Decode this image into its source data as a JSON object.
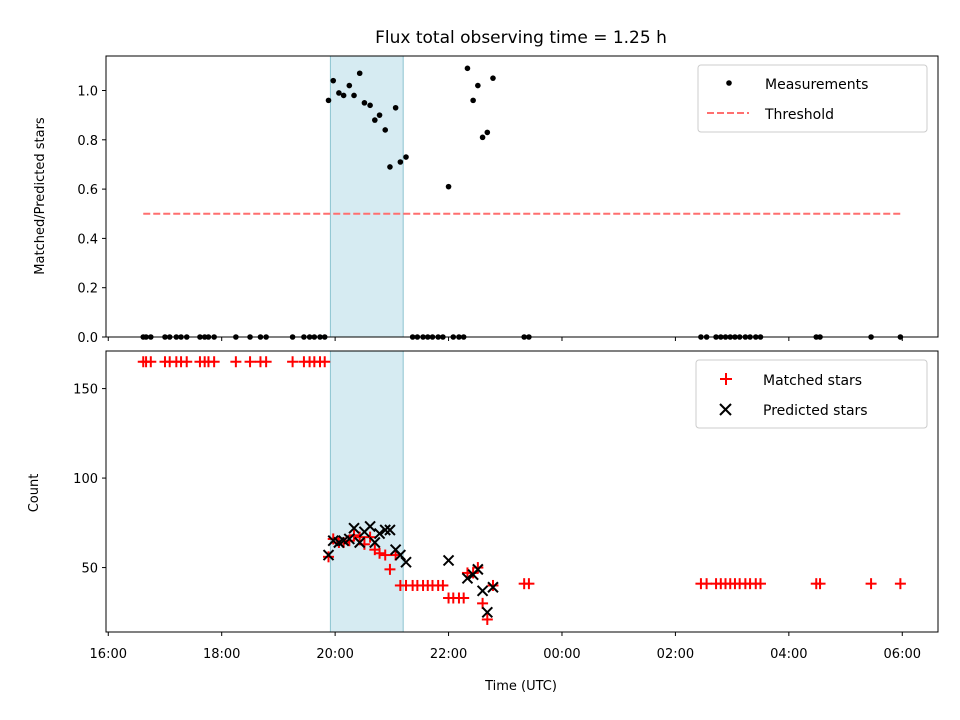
{
  "chart_data": [
    {
      "type": "scatter",
      "title": "Flux total observing time = 1.25 h",
      "ylabel": "Matched/Predicted stars",
      "xlabel": "",
      "xlim": [
        "16:00",
        "06:00"
      ],
      "ylim": [
        0,
        1.14
      ],
      "yticks": [
        "0.0",
        "0.2",
        "0.4",
        "0.6",
        "0.8",
        "1.0"
      ],
      "shaded_interval": [
        "19:55",
        "21:12"
      ],
      "legend_position": "upper right",
      "series": [
        {
          "name": "Measurements",
          "marker": "dot",
          "color": "#000000",
          "points": [
            [
              "16:37",
              0
            ],
            [
              "16:40",
              0
            ],
            [
              "16:45",
              0
            ],
            [
              "17:00",
              0
            ],
            [
              "17:05",
              0
            ],
            [
              "17:12",
              0
            ],
            [
              "17:17",
              0
            ],
            [
              "17:23",
              0
            ],
            [
              "17:37",
              0
            ],
            [
              "17:42",
              0
            ],
            [
              "17:46",
              0
            ],
            [
              "17:52",
              0
            ],
            [
              "18:15",
              0
            ],
            [
              "18:30",
              0
            ],
            [
              "18:41",
              0
            ],
            [
              "18:47",
              0
            ],
            [
              "19:15",
              0
            ],
            [
              "19:27",
              0
            ],
            [
              "19:33",
              0
            ],
            [
              "19:38",
              0
            ],
            [
              "19:44",
              0
            ],
            [
              "19:49",
              0
            ],
            [
              "19:53",
              0.96
            ],
            [
              "19:58",
              1.04
            ],
            [
              "20:04",
              0.99
            ],
            [
              "20:09",
              0.98
            ],
            [
              "20:15",
              1.02
            ],
            [
              "20:20",
              0.98
            ],
            [
              "20:26",
              1.07
            ],
            [
              "20:31",
              0.95
            ],
            [
              "20:37",
              0.94
            ],
            [
              "20:42",
              0.88
            ],
            [
              "20:47",
              0.9
            ],
            [
              "20:53",
              0.84
            ],
            [
              "20:58",
              0.69
            ],
            [
              "21:04",
              0.93
            ],
            [
              "21:09",
              0.71
            ],
            [
              "21:15",
              0.73
            ],
            [
              "21:22",
              0
            ],
            [
              "21:27",
              0
            ],
            [
              "21:33",
              0
            ],
            [
              "21:38",
              0
            ],
            [
              "21:43",
              0
            ],
            [
              "21:49",
              0
            ],
            [
              "21:54",
              0
            ],
            [
              "22:00",
              0.61
            ],
            [
              "22:05",
              0
            ],
            [
              "22:11",
              0
            ],
            [
              "22:16",
              0
            ],
            [
              "22:20",
              1.09
            ],
            [
              "22:26",
              0.96
            ],
            [
              "22:31",
              1.02
            ],
            [
              "22:36",
              0.81
            ],
            [
              "22:41",
              0.83
            ],
            [
              "22:47",
              1.05
            ],
            [
              "23:20",
              0
            ],
            [
              "23:25",
              0
            ],
            [
              "02:27",
              0
            ],
            [
              "02:33",
              0
            ],
            [
              "02:43",
              0
            ],
            [
              "02:48",
              0
            ],
            [
              "02:53",
              0
            ],
            [
              "02:58",
              0
            ],
            [
              "03:03",
              0
            ],
            [
              "03:08",
              0
            ],
            [
              "03:14",
              0
            ],
            [
              "03:19",
              0
            ],
            [
              "03:25",
              0
            ],
            [
              "03:30",
              0
            ],
            [
              "04:29",
              0
            ],
            [
              "04:33",
              0
            ],
            [
              "05:27",
              0
            ],
            [
              "05:58",
              0
            ]
          ]
        },
        {
          "name": "Threshold",
          "style": "dashed-line",
          "color": "#ff6f6f",
          "points": [
            [
              "16:37",
              0.5
            ],
            [
              "05:58",
              0.5
            ]
          ]
        }
      ]
    },
    {
      "type": "scatter",
      "title": "",
      "ylabel": "Count",
      "xlabel": "Time (UTC)",
      "xlim": [
        "16:00",
        "06:00"
      ],
      "ylim": [
        14,
        171
      ],
      "yticks": [
        "50",
        "100",
        "150"
      ],
      "xticks": [
        "16:00",
        "18:00",
        "20:00",
        "22:00",
        "00:00",
        "02:00",
        "04:00",
        "06:00"
      ],
      "shaded_interval": [
        "19:55",
        "21:12"
      ],
      "legend_position": "upper right",
      "series": [
        {
          "name": "Matched stars",
          "marker": "plus",
          "color": "#ff0000",
          "points": [
            [
              "16:37",
              165
            ],
            [
              "16:40",
              165
            ],
            [
              "16:45",
              165
            ],
            [
              "17:00",
              165
            ],
            [
              "17:05",
              165
            ],
            [
              "17:12",
              165
            ],
            [
              "17:17",
              165
            ],
            [
              "17:23",
              165
            ],
            [
              "17:37",
              165
            ],
            [
              "17:42",
              165
            ],
            [
              "17:46",
              165
            ],
            [
              "17:52",
              165
            ],
            [
              "18:15",
              165
            ],
            [
              "18:30",
              165
            ],
            [
              "18:41",
              165
            ],
            [
              "18:47",
              165
            ],
            [
              "19:15",
              165
            ],
            [
              "19:27",
              165
            ],
            [
              "19:33",
              165
            ],
            [
              "19:38",
              165
            ],
            [
              "19:44",
              165
            ],
            [
              "19:49",
              165
            ],
            [
              "19:53",
              56
            ],
            [
              "19:58",
              66
            ],
            [
              "20:04",
              64
            ],
            [
              "20:09",
              64
            ],
            [
              "20:15",
              65
            ],
            [
              "20:20",
              68
            ],
            [
              "20:26",
              67
            ],
            [
              "20:31",
              63
            ],
            [
              "20:37",
              67
            ],
            [
              "20:42",
              60
            ],
            [
              "20:47",
              58
            ],
            [
              "20:53",
              57
            ],
            [
              "20:58",
              49
            ],
            [
              "21:04",
              57
            ],
            [
              "21:09",
              40
            ],
            [
              "21:15",
              40
            ],
            [
              "21:22",
              40
            ],
            [
              "21:27",
              40
            ],
            [
              "21:33",
              40
            ],
            [
              "21:38",
              40
            ],
            [
              "21:43",
              40
            ],
            [
              "21:49",
              40
            ],
            [
              "21:54",
              40
            ],
            [
              "22:00",
              33
            ],
            [
              "22:05",
              33
            ],
            [
              "22:11",
              33
            ],
            [
              "22:16",
              33
            ],
            [
              "22:20",
              47
            ],
            [
              "22:26",
              47
            ],
            [
              "22:31",
              50
            ],
            [
              "22:36",
              30
            ],
            [
              "22:41",
              21
            ],
            [
              "22:47",
              40
            ],
            [
              "23:20",
              41
            ],
            [
              "23:25",
              41
            ],
            [
              "02:27",
              41
            ],
            [
              "02:33",
              41
            ],
            [
              "02:43",
              41
            ],
            [
              "02:48",
              41
            ],
            [
              "02:53",
              41
            ],
            [
              "02:58",
              41
            ],
            [
              "03:03",
              41
            ],
            [
              "03:08",
              41
            ],
            [
              "03:14",
              41
            ],
            [
              "03:19",
              41
            ],
            [
              "03:25",
              41
            ],
            [
              "03:30",
              41
            ],
            [
              "04:29",
              41
            ],
            [
              "04:33",
              41
            ],
            [
              "05:27",
              41
            ],
            [
              "05:58",
              41
            ]
          ]
        },
        {
          "name": "Predicted stars",
          "marker": "x",
          "color": "#000000",
          "points": [
            [
              "19:53",
              57
            ],
            [
              "19:58",
              65
            ],
            [
              "20:04",
              64
            ],
            [
              "20:09",
              65
            ],
            [
              "20:15",
              66
            ],
            [
              "20:20",
              72
            ],
            [
              "20:26",
              64
            ],
            [
              "20:31",
              70
            ],
            [
              "20:37",
              73
            ],
            [
              "20:42",
              64
            ],
            [
              "20:47",
              69
            ],
            [
              "20:53",
              71
            ],
            [
              "20:58",
              71
            ],
            [
              "21:04",
              60
            ],
            [
              "21:09",
              57
            ],
            [
              "21:15",
              53
            ],
            [
              "22:00",
              54
            ],
            [
              "22:20",
              44
            ],
            [
              "22:26",
              46
            ],
            [
              "22:31",
              49
            ],
            [
              "22:36",
              37
            ],
            [
              "22:41",
              25
            ],
            [
              "22:47",
              39
            ]
          ]
        }
      ]
    }
  ]
}
